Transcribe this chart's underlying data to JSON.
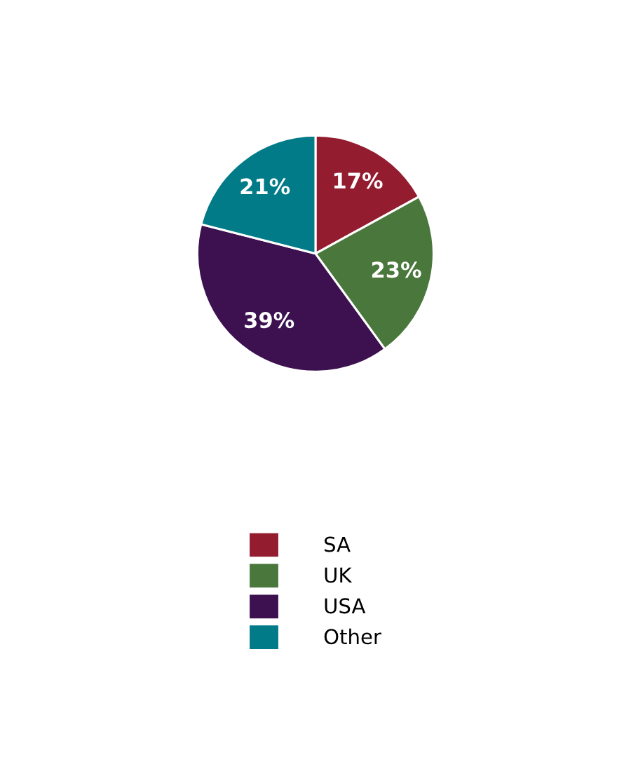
{
  "chart_data": {
    "type": "pie",
    "categories": [
      "SA",
      "UK",
      "USA",
      "Other"
    ],
    "values": [
      17,
      23,
      39,
      21
    ],
    "colors": [
      "#931c2f",
      "#4a783c",
      "#3d1150",
      "#007b87"
    ],
    "value_labels": [
      "17%",
      "23%",
      "39%",
      "21%"
    ],
    "legend": "bottom"
  }
}
